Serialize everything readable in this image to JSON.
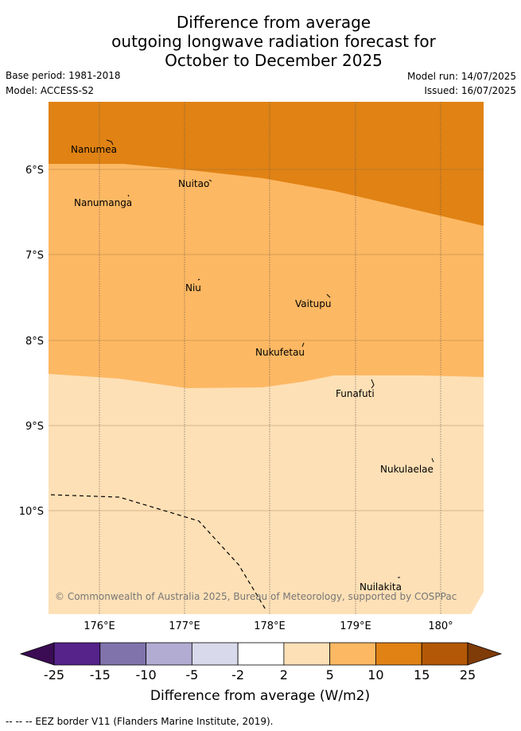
{
  "header": {
    "title_line1": "Difference from average",
    "title_line2": "outgoing longwave radiation forecast for",
    "title_line3": "October to December 2025",
    "base_period": "Base period: 1981-2018",
    "model": "Model: ACCESS-S2",
    "model_run": "Model run: 14/07/2025",
    "issued": "Issued: 16/07/2025"
  },
  "map": {
    "lon_ticks": [
      "176°E",
      "177°E",
      "178°E",
      "179°E",
      "180°"
    ],
    "lat_ticks": [
      "6°S",
      "7°S",
      "8°S",
      "9°S",
      "10°S"
    ],
    "places": [
      "Nanumea",
      "Nuitao",
      "Nanumanga",
      "Niu",
      "Vaitupu",
      "Nukufetau",
      "Funafuti",
      "Nukulaelae",
      "Nuilakita"
    ],
    "copyright": "© Commonwealth of Australia 2025, Bureau of Meteorology, supported by COSPPac"
  },
  "colorbar": {
    "tick_labels": [
      "-25",
      "-15",
      "-10",
      "-5",
      "-2",
      "2",
      "5",
      "10",
      "15",
      "25"
    ],
    "colors": [
      "#3b0c54",
      "#55238a",
      "#8073ac",
      "#b2abd2",
      "#d8daeb",
      "#ffffff",
      "#fee0b6",
      "#fdb863",
      "#e08214",
      "#b35806",
      "#7f3b08"
    ],
    "label": "Difference from average (W/m2)"
  },
  "footer": {
    "eez_legend": "--  --  -- EEZ border V11 (Flanders Marine Institute, 2019)."
  }
}
